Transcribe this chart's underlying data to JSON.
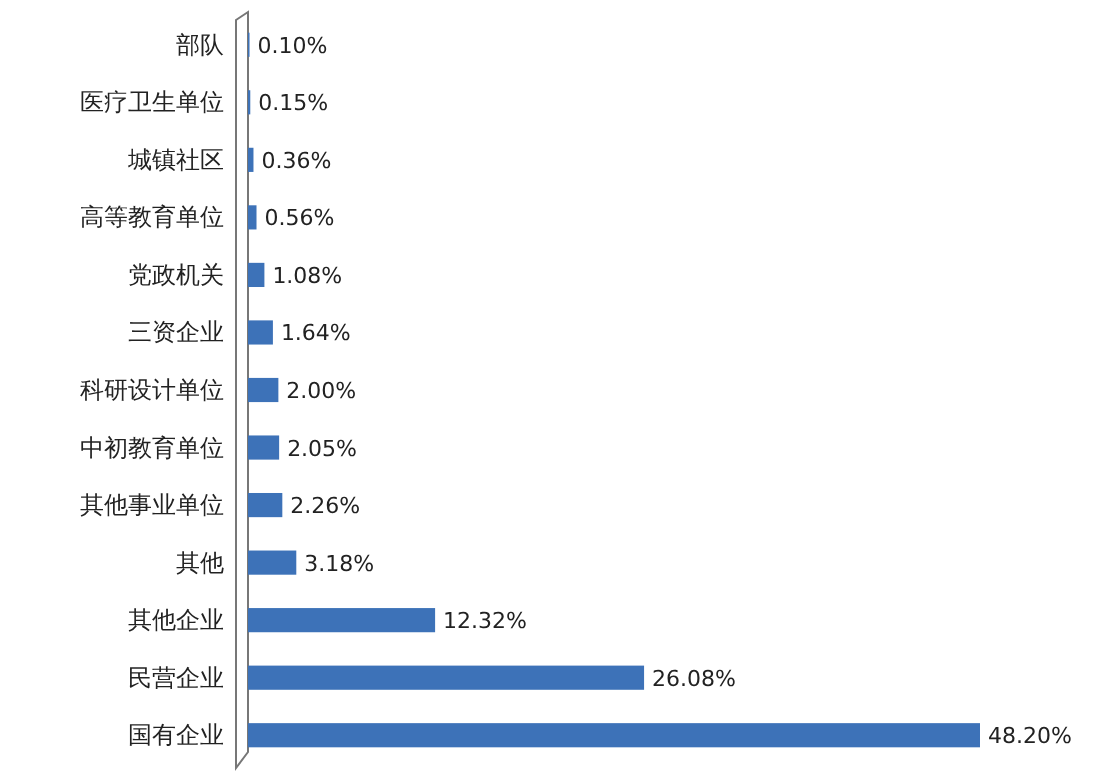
{
  "chart_data": {
    "type": "bar",
    "orientation": "horizontal",
    "categories": [
      "部队",
      "医疗卫生单位",
      "城镇社区",
      "高等教育单位",
      "党政机关",
      "三资企业",
      "科研设计单位",
      "中初教育单位",
      "其他事业单位",
      "其他",
      "其他企业",
      "民营企业",
      "国有企业"
    ],
    "values": [
      0.1,
      0.15,
      0.36,
      0.56,
      1.08,
      1.64,
      2.0,
      2.05,
      2.26,
      3.18,
      12.32,
      26.08,
      48.2
    ],
    "value_labels": [
      "0.10%",
      "0.15%",
      "0.36%",
      "0.56%",
      "1.08%",
      "1.64%",
      "2.00%",
      "2.05%",
      "2.26%",
      "3.18%",
      "12.32%",
      "26.08%",
      "48.20%"
    ],
    "color": "#3d72b8"
  }
}
